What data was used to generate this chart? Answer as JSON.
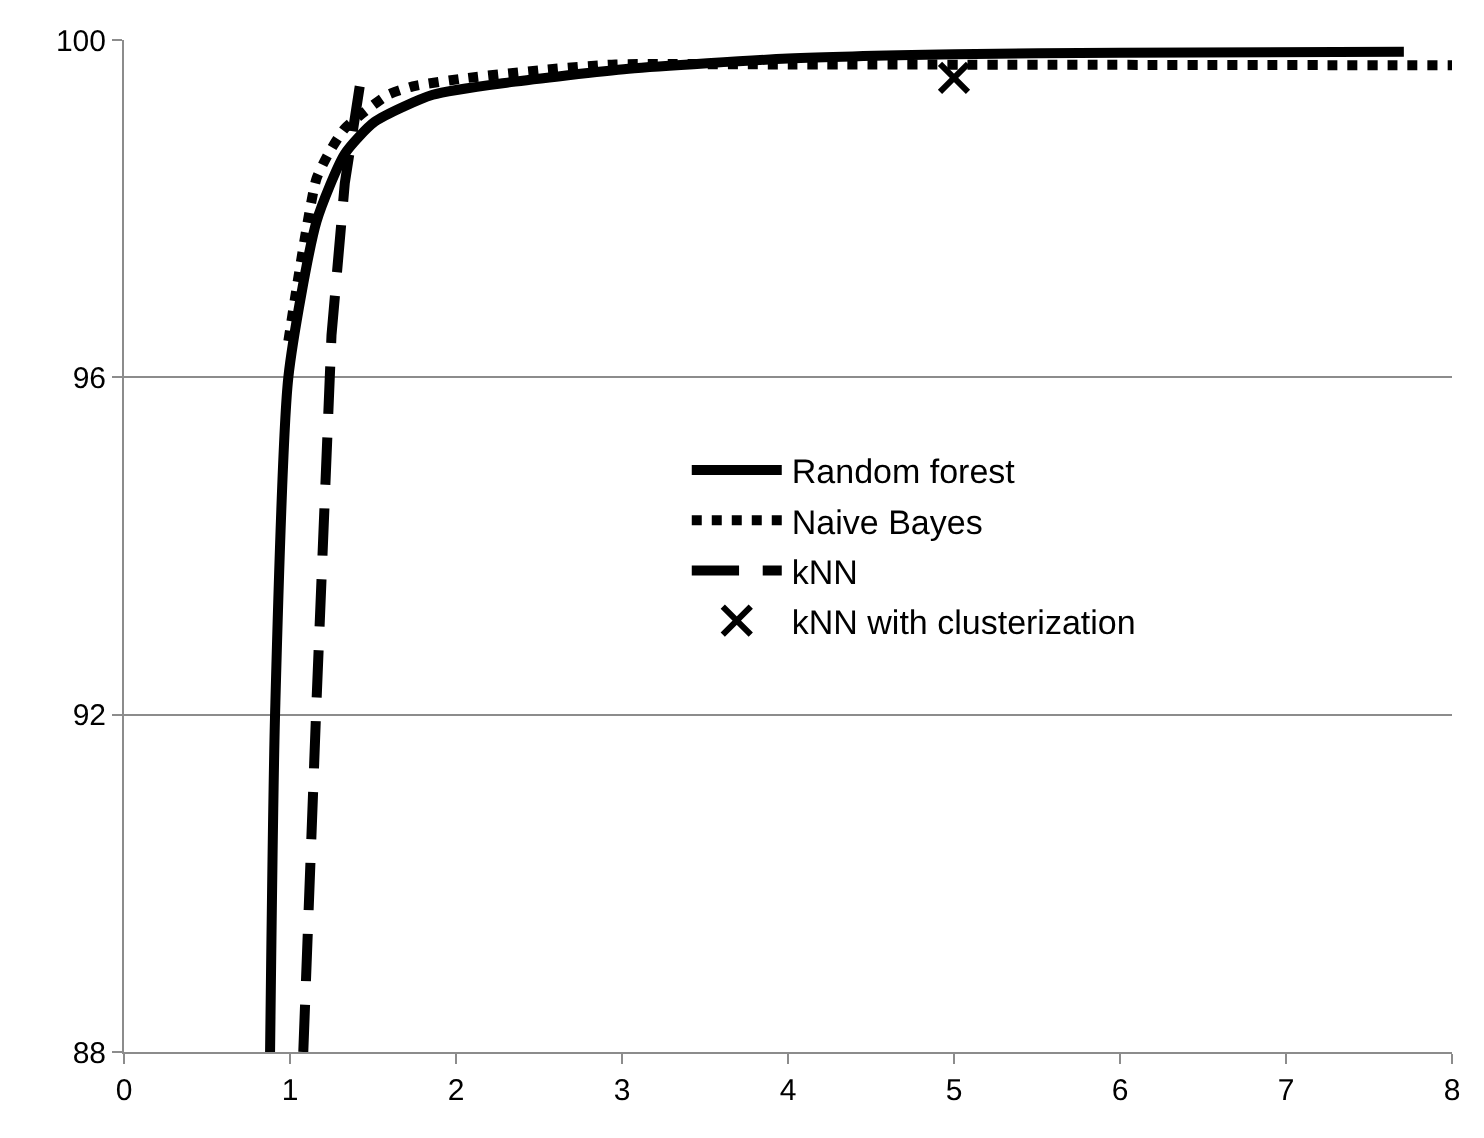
{
  "chart_data": {
    "type": "line",
    "xlim": [
      0,
      8
    ],
    "xticks": [
      0,
      1,
      2,
      3,
      4,
      5,
      6,
      7,
      8
    ],
    "ylim": [
      88,
      100
    ],
    "yticks": [
      88,
      92,
      96,
      100
    ],
    "grid": "y",
    "legend": "right",
    "series": [
      {
        "name": "Random forest",
        "color": "#000000",
        "line_style": "solid",
        "marker": "none",
        "x": [
          0.88,
          0.91,
          0.99,
          1.16,
          1.33,
          1.51,
          1.86,
          2.33,
          3.04,
          4.0,
          5.0,
          6.0,
          7.71
        ],
        "values": [
          88,
          92,
          96,
          97.85,
          98.65,
          99.03,
          99.35,
          99.5,
          99.66,
          99.78,
          99.83,
          99.85,
          99.86
        ]
      },
      {
        "name": "Naive Bayes",
        "color": "#000000",
        "line_style": "dotted",
        "marker": "none",
        "x": [
          0.99,
          1.04,
          1.1,
          1.16,
          1.24,
          1.33,
          1.45,
          1.59,
          1.74,
          2.07,
          2.55,
          2.96,
          4.0,
          8.0
        ],
        "values": [
          96.43,
          97.06,
          97.77,
          98.36,
          98.68,
          98.95,
          99.15,
          99.35,
          99.45,
          99.55,
          99.65,
          99.71,
          99.71,
          99.7
        ]
      },
      {
        "name": "kNN",
        "color": "#000000",
        "line_style": "dashed",
        "marker": "none",
        "x": [
          1.08,
          1.16,
          1.25,
          1.33,
          1.42
        ],
        "values": [
          88,
          92.17,
          96.5,
          98.3,
          99.45
        ]
      },
      {
        "name": "kNN with clusterization",
        "type": "scatter",
        "color": "#000000",
        "marker": "cross",
        "x": [
          5.0
        ],
        "values": [
          99.55
        ]
      }
    ]
  }
}
